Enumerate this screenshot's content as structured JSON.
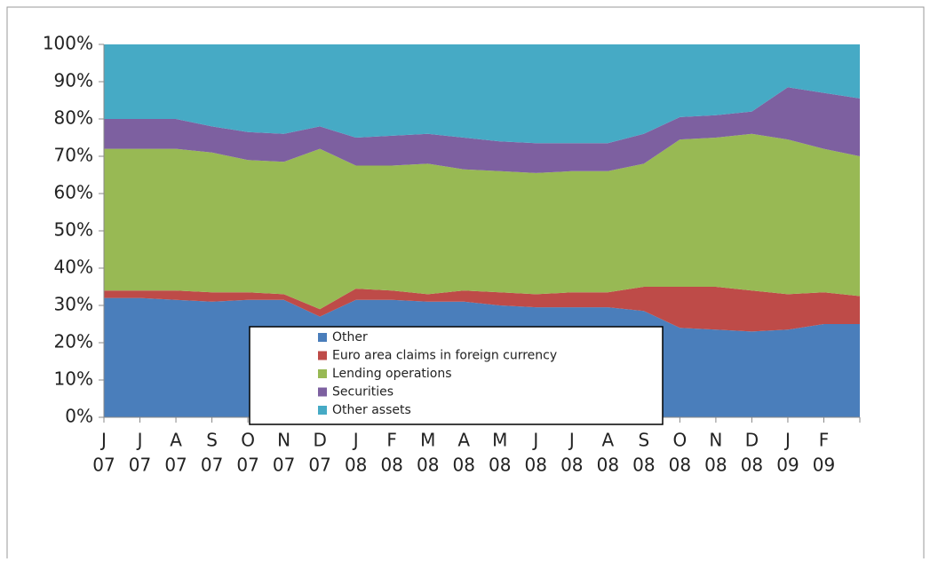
{
  "chart_data": {
    "type": "stacked_area",
    "categories": [
      [
        "J",
        "07"
      ],
      [
        "J",
        "07"
      ],
      [
        "A",
        "07"
      ],
      [
        "S",
        "07"
      ],
      [
        "O",
        "07"
      ],
      [
        "N",
        "07"
      ],
      [
        "D",
        "07"
      ],
      [
        "J",
        "08"
      ],
      [
        "F",
        "08"
      ],
      [
        "M",
        "08"
      ],
      [
        "A",
        "08"
      ],
      [
        "M",
        "08"
      ],
      [
        "J",
        "08"
      ],
      [
        "J",
        "08"
      ],
      [
        "A",
        "08"
      ],
      [
        "S",
        "08"
      ],
      [
        "O",
        "08"
      ],
      [
        "N",
        "08"
      ],
      [
        "D",
        "08"
      ],
      [
        "J",
        "09"
      ],
      [
        "F",
        "09"
      ],
      null
    ],
    "series": [
      {
        "name": "Other",
        "color": "#4a7ebb",
        "values": [
          32,
          32,
          31.5,
          31,
          31.5,
          31.5,
          27,
          31.5,
          31.5,
          31,
          31,
          30,
          29.5,
          29.5,
          29.5,
          28.5,
          24,
          23.5,
          23,
          23.5,
          25,
          25
        ]
      },
      {
        "name": "Euro area claims in foreign currency",
        "color": "#be4b48",
        "values": [
          2,
          2,
          2.5,
          2.5,
          2,
          1.5,
          2,
          3,
          2.5,
          2,
          3,
          3.5,
          3.5,
          4,
          4,
          6.5,
          11,
          11.5,
          11,
          9.5,
          8.5,
          7.5
        ]
      },
      {
        "name": "Lending operations",
        "color": "#98b954",
        "values": [
          38,
          38,
          38,
          37.5,
          35.5,
          35.5,
          43,
          33,
          33.5,
          35,
          32.5,
          32.5,
          32.5,
          32.5,
          32.5,
          33,
          39.5,
          40,
          42,
          41.5,
          38.5,
          37.5
        ]
      },
      {
        "name": "Securities",
        "color": "#7d60a0",
        "values": [
          8,
          8,
          8,
          7,
          7.5,
          7.5,
          6,
          7.5,
          8,
          8,
          8.5,
          8,
          8,
          7.5,
          7.5,
          8,
          6,
          6,
          6,
          14,
          15,
          15.5
        ]
      },
      {
        "name": "Other assets",
        "color": "#46aac5",
        "values": [
          20,
          20,
          20,
          22,
          23.5,
          24,
          22,
          25,
          24.5,
          24,
          25,
          26,
          26.5,
          26.5,
          26.5,
          24,
          19.5,
          19,
          18,
          11.5,
          13,
          14.5
        ]
      }
    ],
    "ylim": [
      0,
      100
    ],
    "yticks": [
      {
        "value": 0,
        "label": "0%"
      },
      {
        "value": 10,
        "label": "10%"
      },
      {
        "value": 20,
        "label": "20%"
      },
      {
        "value": 30,
        "label": "30%"
      },
      {
        "value": 40,
        "label": "40%"
      },
      {
        "value": 50,
        "label": "50%"
      },
      {
        "value": 60,
        "label": "60%"
      },
      {
        "value": 70,
        "label": "70%"
      },
      {
        "value": 80,
        "label": "80%"
      },
      {
        "value": 90,
        "label": "90%"
      },
      {
        "value": 100,
        "label": "100%"
      }
    ]
  }
}
